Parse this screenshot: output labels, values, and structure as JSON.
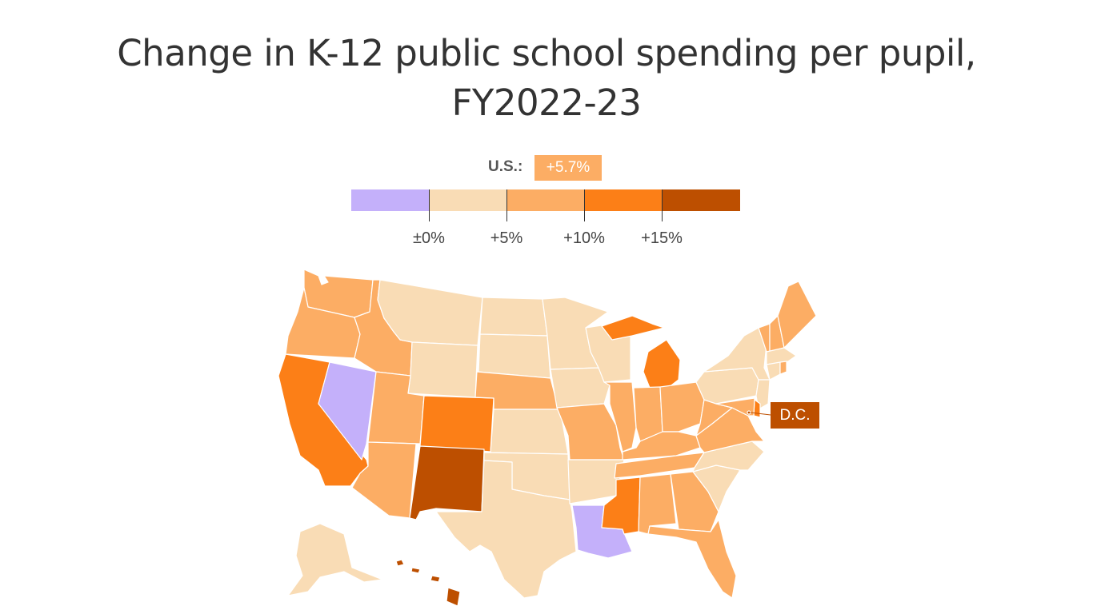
{
  "title_line1": "Change in K-12 public school spending per pupil,",
  "title_line2": "FY2022-23",
  "us_label": "U.S.:",
  "us_value": "+5.7%",
  "legend": {
    "bins": [
      {
        "color": "#c4b0fa"
      },
      {
        "color": "#f9dcb5"
      },
      {
        "color": "#fcad64"
      },
      {
        "color": "#fc7f17"
      },
      {
        "color": "#bd4f00"
      }
    ],
    "ticks": [
      "±0%",
      "+5%",
      "+10%",
      "+15%"
    ]
  },
  "dc_label": "D.C.",
  "colors": {
    "decrease": "#c4b0fa",
    "0_to_5": "#f9dcb5",
    "5_to_10": "#fcad64",
    "10_to_15": "#fc7f17",
    "15_plus": "#bd4f00",
    "border": "#ffffff"
  },
  "state_bins": {
    "WA": 2,
    "OR": 2,
    "CA": 3,
    "NV": 0,
    "ID": 2,
    "MT": 1,
    "WY": 1,
    "UT": 2,
    "AZ": 2,
    "CO": 3,
    "NM": 4,
    "ND": 1,
    "SD": 1,
    "NE": 2,
    "KS": 1,
    "OK": 1,
    "TX": 1,
    "MN": 1,
    "IA": 1,
    "MO": 2,
    "AR": 1,
    "LA": 0,
    "WI": 1,
    "IL": 2,
    "MI": 3,
    "IN": 2,
    "OH": 2,
    "KY": 2,
    "TN": 2,
    "MS": 3,
    "AL": 2,
    "GA": 2,
    "FL": 2,
    "SC": 1,
    "NC": 1,
    "VA": 2,
    "WV": 2,
    "PA": 1,
    "NY": 1,
    "VT": 2,
    "NH": 2,
    "ME": 2,
    "MA": 1,
    "CT": 1,
    "RI": 2,
    "NJ": 1,
    "DE": 3,
    "MD": 2,
    "DC": 4,
    "AK": 1,
    "HI": 4
  }
}
